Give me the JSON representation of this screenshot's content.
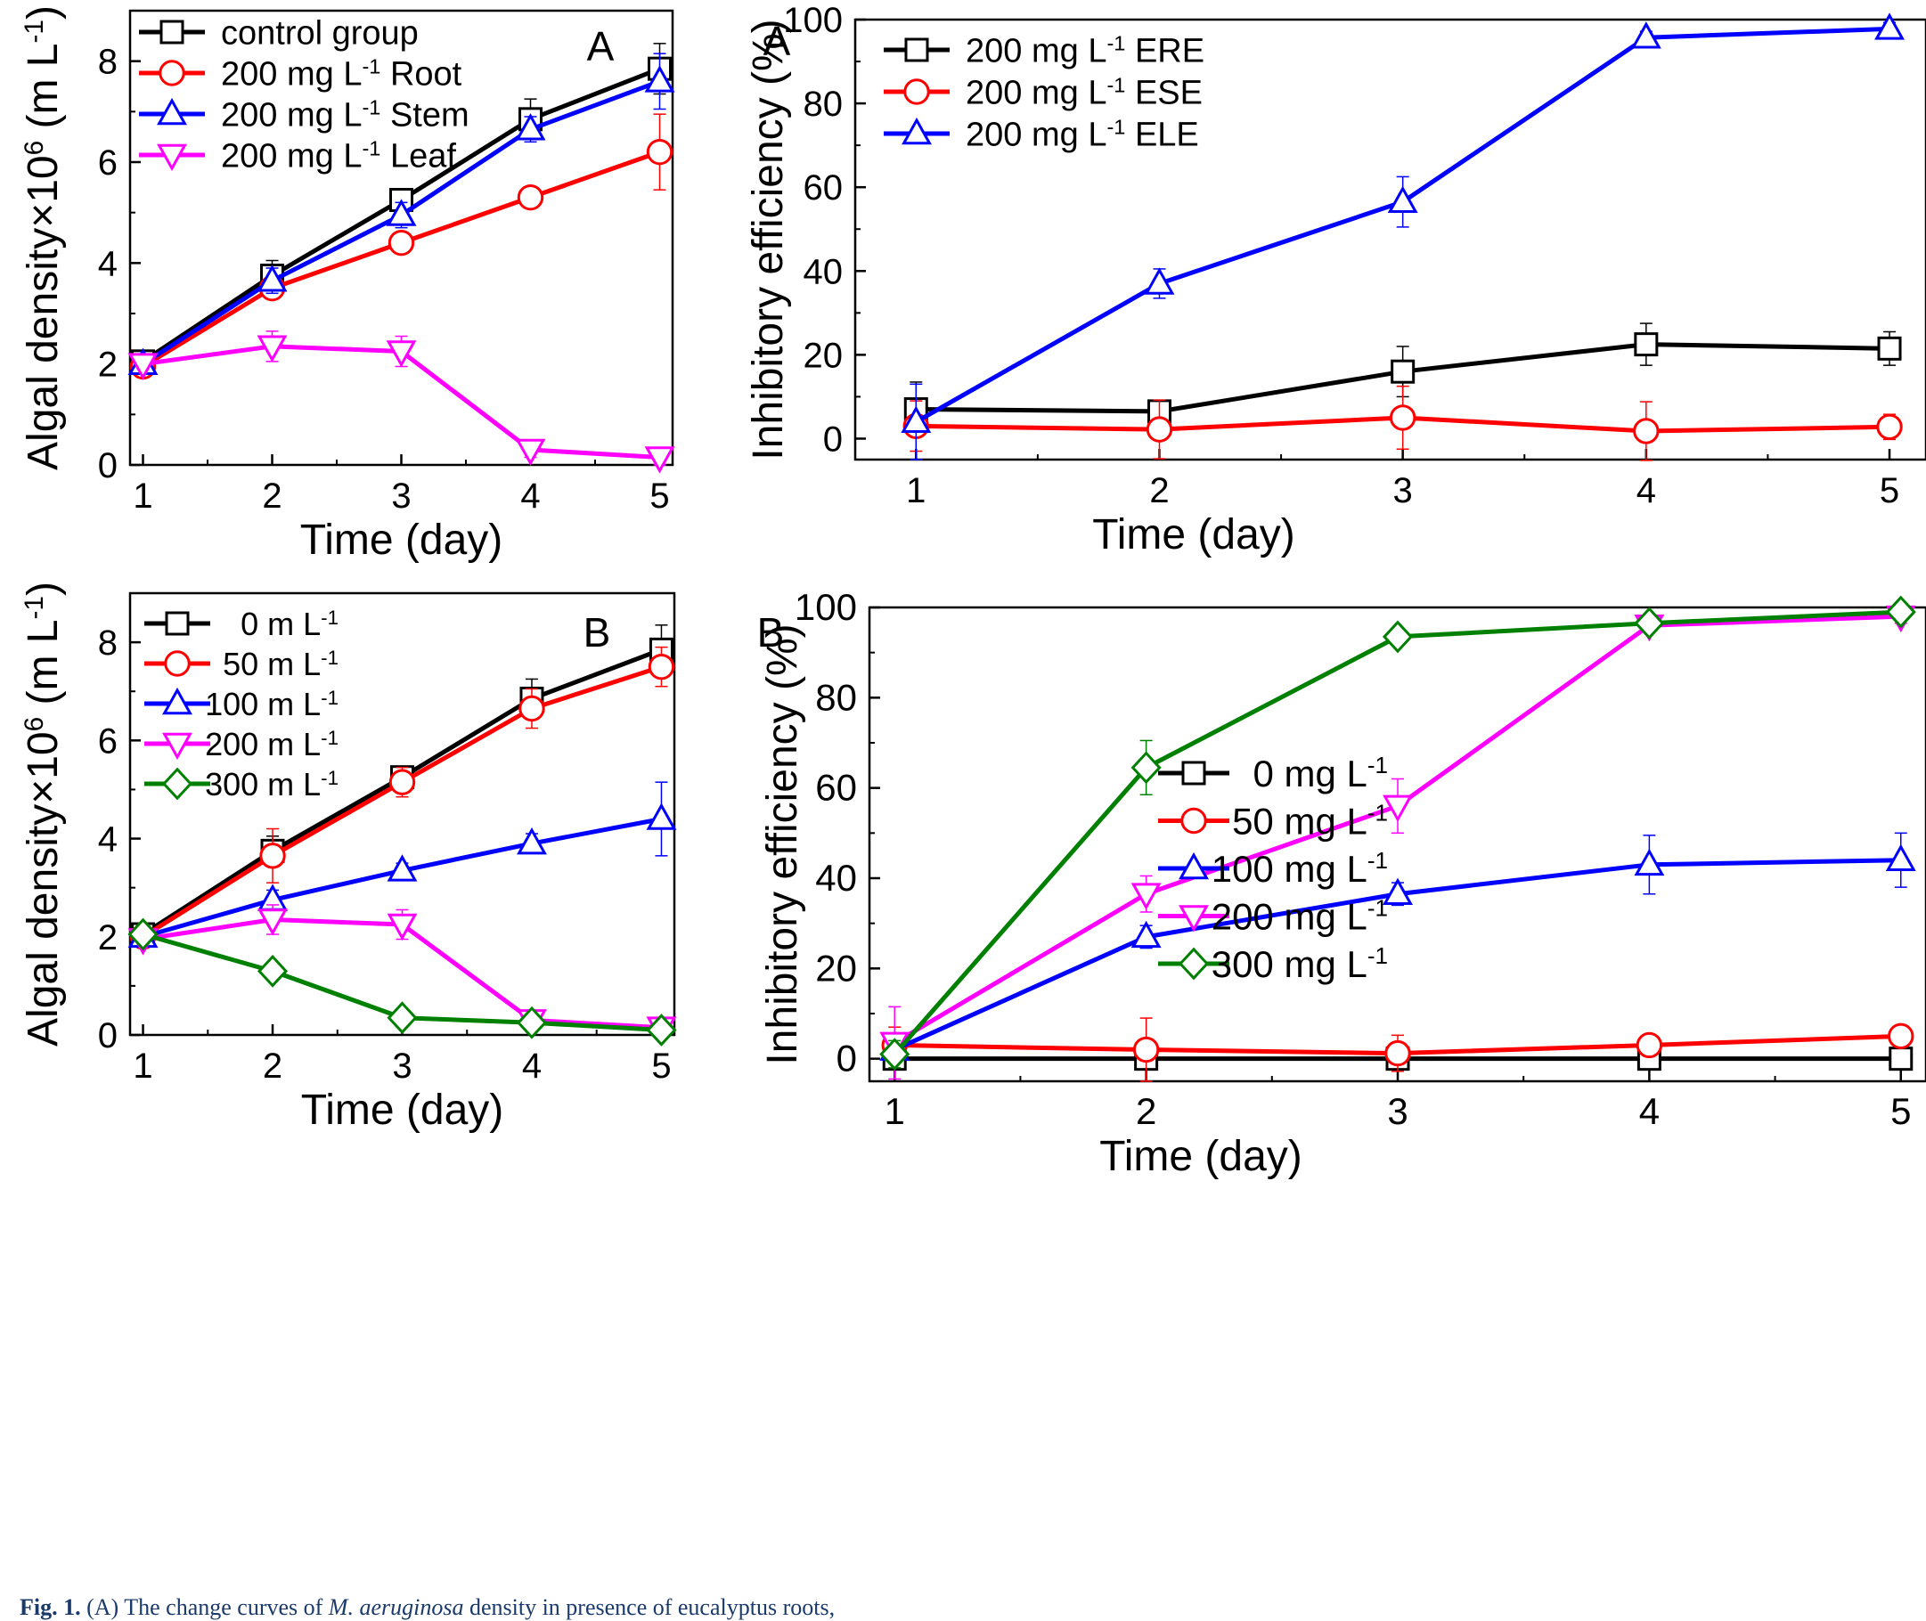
{
  "chart_data": [
    {
      "id": "panel-left-A",
      "type": "line",
      "panel_label": "A",
      "xlabel": "Time (day)",
      "ylabel": "Algal density×10^6 (m L^-1)",
      "xlim": [
        0.9,
        5.1
      ],
      "ylim": [
        0,
        9
      ],
      "xticks": [
        1,
        2,
        3,
        4,
        5
      ],
      "yticks": [
        0,
        2,
        4,
        6,
        8
      ],
      "x": [
        1,
        2,
        3,
        4,
        5
      ],
      "series": [
        {
          "name": "control group",
          "color": "#000000",
          "marker": "square",
          "values": [
            2.05,
            3.75,
            5.25,
            6.85,
            7.85
          ],
          "errors": [
            0.1,
            0.3,
            0.2,
            0.4,
            0.5
          ]
        },
        {
          "name": "200 mg L-1 Root",
          "color": "#ff0000",
          "marker": "circle",
          "values": [
            1.95,
            3.5,
            4.4,
            5.3,
            6.2
          ],
          "errors": [
            0.1,
            0.2,
            0.15,
            0.2,
            0.75
          ]
        },
        {
          "name": "200 mg L-1 Stem",
          "color": "#0000ff",
          "marker": "triangle-up",
          "values": [
            2.0,
            3.65,
            4.95,
            6.65,
            7.6
          ],
          "errors": [
            0.1,
            0.25,
            0.25,
            0.25,
            0.55
          ]
        },
        {
          "name": "200 mg L-1 Leaf",
          "color": "#ff00ff",
          "marker": "triangle-down",
          "values": [
            2.0,
            2.35,
            2.25,
            0.3,
            0.15
          ],
          "errors": [
            0.1,
            0.3,
            0.3,
            0.15,
            0.15
          ]
        }
      ]
    },
    {
      "id": "panel-right-A",
      "type": "line",
      "panel_label": "A",
      "xlabel": "Time (day)",
      "ylabel": "Inhibitory efficiency (%)",
      "xlim": [
        0.75,
        5.15
      ],
      "ylim": [
        -5,
        100
      ],
      "xticks": [
        1,
        2,
        3,
        4,
        5
      ],
      "yticks": [
        0,
        20,
        40,
        60,
        80,
        100
      ],
      "x": [
        1,
        2,
        3,
        4,
        5
      ],
      "series": [
        {
          "name": "200 mg L-1 ERE",
          "color": "#000000",
          "marker": "square",
          "values": [
            7,
            6.5,
            16,
            22.5,
            21.5
          ],
          "errors": [
            6.5,
            2.5,
            6,
            5,
            4
          ]
        },
        {
          "name": "200 mg L-1 ESE",
          "color": "#ff0000",
          "marker": "circle",
          "values": [
            3,
            2.2,
            5,
            1.8,
            2.8
          ],
          "errors": [
            6,
            7,
            7.5,
            7,
            3
          ]
        },
        {
          "name": "200 mg L-1 ELE",
          "color": "#0000ff",
          "marker": "triangle-up",
          "values": [
            4,
            37,
            56.5,
            95.7,
            97.8
          ],
          "errors": [
            9,
            3.5,
            6,
            1.5,
            1.5
          ]
        }
      ]
    },
    {
      "id": "panel-left-B",
      "type": "line",
      "panel_label": "B",
      "xlabel": "Time (day)",
      "ylabel": "Algal density×10^6 (m L^-1)",
      "xlim": [
        0.9,
        5.1
      ],
      "ylim": [
        0,
        9
      ],
      "xticks": [
        1,
        2,
        3,
        4,
        5
      ],
      "yticks": [
        0,
        2,
        4,
        6,
        8
      ],
      "x": [
        1,
        2,
        3,
        4,
        5
      ],
      "series": [
        {
          "name": "0 m L-1",
          "color": "#000000",
          "marker": "square",
          "values": [
            2.05,
            3.75,
            5.25,
            6.85,
            7.85
          ],
          "errors": [
            0.1,
            0.3,
            0.2,
            0.4,
            0.5
          ]
        },
        {
          "name": "50 m L-1",
          "color": "#ff0000",
          "marker": "circle",
          "values": [
            2.0,
            3.65,
            5.15,
            6.65,
            7.5
          ],
          "errors": [
            0.1,
            0.55,
            0.3,
            0.4,
            0.4
          ]
        },
        {
          "name": "100 m L-1",
          "color": "#0000ff",
          "marker": "triangle-up",
          "values": [
            2.0,
            2.75,
            3.35,
            3.9,
            4.4
          ],
          "errors": [
            0.1,
            0.2,
            0.15,
            0.2,
            0.75
          ]
        },
        {
          "name": "200 m L-1",
          "color": "#ff00ff",
          "marker": "triangle-down",
          "values": [
            1.95,
            2.35,
            2.25,
            0.3,
            0.15
          ],
          "errors": [
            0.1,
            0.3,
            0.3,
            0.15,
            0.15
          ]
        },
        {
          "name": "300 m L-1",
          "color": "#008000",
          "marker": "diamond",
          "values": [
            2.05,
            1.3,
            0.35,
            0.25,
            0.1
          ],
          "errors": [
            0.1,
            0.1,
            0.1,
            0.1,
            0.1
          ]
        }
      ]
    },
    {
      "id": "panel-right-B",
      "type": "line",
      "panel_label": "B",
      "xlabel": "Time (day)",
      "ylabel": "Inhibitory efficiency (%)",
      "xlim": [
        0.9,
        5.1
      ],
      "ylim": [
        -5,
        100
      ],
      "xticks": [
        1,
        2,
        3,
        4,
        5
      ],
      "yticks": [
        0,
        20,
        40,
        60,
        80,
        100
      ],
      "x": [
        1,
        2,
        3,
        4,
        5
      ],
      "series": [
        {
          "name": "0 mg L-1",
          "color": "#000000",
          "marker": "square",
          "values": [
            0,
            0,
            0,
            0,
            0
          ],
          "errors": [
            0,
            0,
            0,
            0,
            0
          ]
        },
        {
          "name": "50 mg L-1",
          "color": "#ff0000",
          "marker": "circle",
          "values": [
            3,
            2,
            1.2,
            3,
            5
          ],
          "errors": [
            4,
            7,
            4,
            2,
            2
          ]
        },
        {
          "name": "100 mg L-1",
          "color": "#0000ff",
          "marker": "triangle-up",
          "values": [
            2,
            27,
            36.5,
            43,
            44
          ],
          "errors": [
            3,
            2.5,
            2.5,
            6.5,
            6
          ]
        },
        {
          "name": "200 mg L-1",
          "color": "#ff00ff",
          "marker": "triangle-down",
          "values": [
            3.5,
            36.5,
            56,
            96,
            98
          ],
          "errors": [
            8,
            4,
            6,
            1.5,
            1.5
          ]
        },
        {
          "name": "300 mg L-1",
          "color": "#008000",
          "marker": "diamond",
          "values": [
            1,
            64.5,
            93.5,
            96.5,
            99
          ],
          "errors": [
            3,
            6,
            1.5,
            1.5,
            1
          ]
        }
      ]
    }
  ],
  "caption": {
    "prefix": "Fig. 1.",
    "text_a": "(A) The change curves of",
    "species": "M. aeruginosa",
    "text_b": "density in presence of eucalyptus roots,"
  }
}
